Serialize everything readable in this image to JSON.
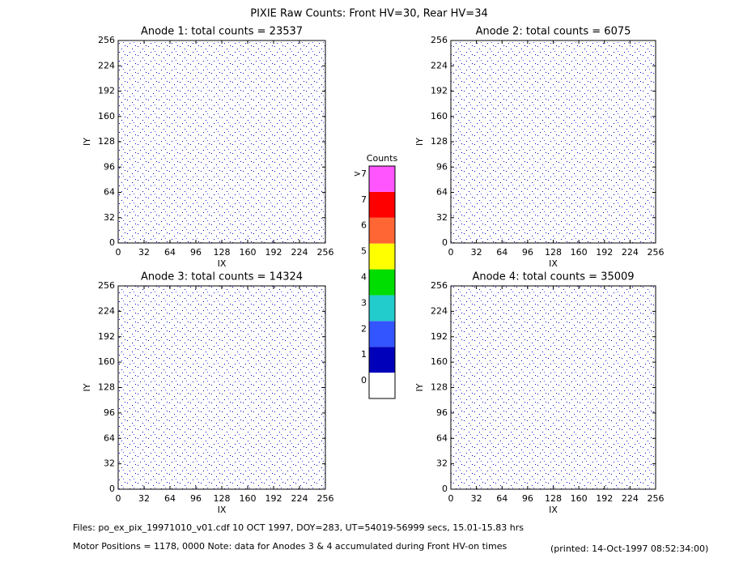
{
  "title": "PIXIE Raw Counts:  Front HV=30, Rear HV=34",
  "chart_data": [
    {
      "type": "heatmap",
      "title": "Anode 1: total counts = 23537",
      "x_label": "IX",
      "y_label": "IY",
      "xlim": [
        0,
        256
      ],
      "ylim": [
        0,
        256
      ],
      "xticks": [
        0,
        32,
        64,
        96,
        128,
        160,
        192,
        224,
        256
      ],
      "yticks": [
        0,
        32,
        64,
        96,
        128,
        160,
        192,
        224,
        256
      ]
    },
    {
      "type": "heatmap",
      "title": "Anode 2: total counts = 6075",
      "x_label": "IX",
      "y_label": "IY",
      "xlim": [
        0,
        256
      ],
      "ylim": [
        0,
        256
      ],
      "xticks": [
        0,
        32,
        64,
        96,
        128,
        160,
        192,
        224,
        256
      ],
      "yticks": [
        0,
        32,
        64,
        96,
        128,
        160,
        192,
        224,
        256
      ]
    },
    {
      "type": "heatmap",
      "title": "Anode 3: total counts = 14324",
      "x_label": "IX",
      "y_label": "IY",
      "xlim": [
        0,
        256
      ],
      "ylim": [
        0,
        256
      ],
      "xticks": [
        0,
        32,
        64,
        96,
        128,
        160,
        192,
        224,
        256
      ],
      "yticks": [
        0,
        32,
        64,
        96,
        128,
        160,
        192,
        224,
        256
      ]
    },
    {
      "type": "heatmap",
      "title": "Anode 4: total counts = 35009",
      "x_label": "IX",
      "y_label": "IY",
      "xlim": [
        0,
        256
      ],
      "ylim": [
        0,
        256
      ],
      "xticks": [
        0,
        32,
        64,
        96,
        128,
        160,
        192,
        224,
        256
      ],
      "yticks": [
        0,
        32,
        64,
        96,
        128,
        160,
        192,
        224,
        256
      ]
    }
  ],
  "colorbar": {
    "title": "Counts",
    "labels": [
      0,
      1,
      2,
      3,
      4,
      5,
      6,
      7,
      ">7"
    ],
    "colors": [
      "#ffffff",
      "#0000bb",
      "#3355ff",
      "#22cccc",
      "#00dd00",
      "#ffff00",
      "#ff6633",
      "#ff0000",
      "#ff55ff"
    ]
  },
  "footer": {
    "files": "Files: po_ex_pix_19971010_v01.cdf     10 OCT 1997, DOY=283, UT=54019-56999 secs, 15.01-15.83 hrs",
    "motor": "Motor Positions = 1178, 0000    Note: data for Anodes 3 & 4 accumulated during Front HV-on times",
    "printed": "(printed: 14-Oct-1997 08:52:34:00)"
  }
}
